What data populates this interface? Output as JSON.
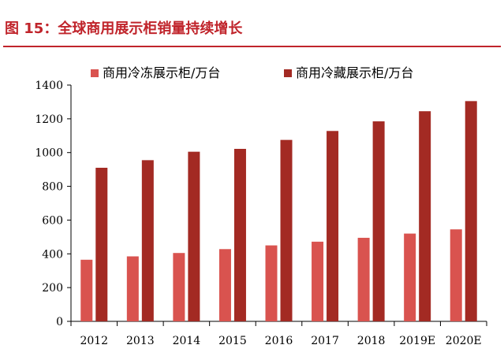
{
  "header": {
    "title": "图 15：全球商用展示柜销量持续增长"
  },
  "chart_data": {
    "type": "bar",
    "categories": [
      "2012",
      "2013",
      "2014",
      "2015",
      "2016",
      "2017",
      "2018",
      "2019E",
      "2020E"
    ],
    "series": [
      {
        "name": "商用冷冻展示柜/万台",
        "color": "#d9534f",
        "values": [
          365,
          385,
          405,
          428,
          450,
          472,
          495,
          520,
          545
        ]
      },
      {
        "name": "商用冷藏展示柜/万台",
        "color": "#a32a23",
        "values": [
          910,
          955,
          1005,
          1022,
          1075,
          1128,
          1185,
          1245,
          1305
        ]
      }
    ],
    "yticks": [
      0,
      200,
      400,
      600,
      800,
      1000,
      1200,
      1400
    ],
    "ylim": [
      0,
      1400
    ],
    "xlabel": "",
    "ylabel": "",
    "legend_position": "top",
    "grid": false
  }
}
